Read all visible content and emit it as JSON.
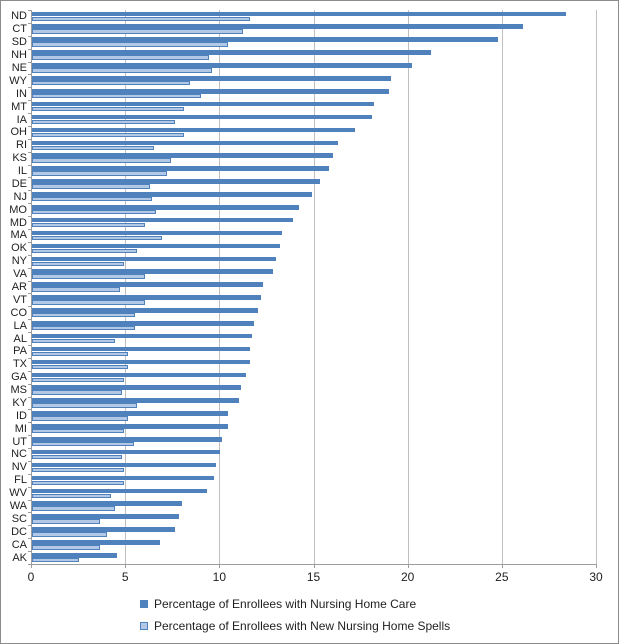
{
  "chart_data": {
    "type": "bar",
    "orientation": "horizontal",
    "title": "",
    "categories": [
      "ND",
      "CT",
      "SD",
      "NH",
      "NE",
      "WY",
      "IN",
      "MT",
      "IA",
      "OH",
      "RI",
      "KS",
      "IL",
      "DE",
      "NJ",
      "MO",
      "MD",
      "MA",
      "OK",
      "NY",
      "VA",
      "AR",
      "VT",
      "CO",
      "LA",
      "AL",
      "PA",
      "TX",
      "GA",
      "MS",
      "KY",
      "ID",
      "MI",
      "UT",
      "NC",
      "NV",
      "FL",
      "WV",
      "WA",
      "SC",
      "DC",
      "CA",
      "AK"
    ],
    "series": [
      {
        "name": "Percentage of Enrollees with Nursing Home Care",
        "color": "#4f81bd",
        "values": [
          28.4,
          26.1,
          24.8,
          21.2,
          20.2,
          19.1,
          19.0,
          18.2,
          18.1,
          17.2,
          16.3,
          16.0,
          15.8,
          15.3,
          14.9,
          14.2,
          13.9,
          13.3,
          13.2,
          13.0,
          12.8,
          12.3,
          12.2,
          12.0,
          11.8,
          11.7,
          11.6,
          11.6,
          11.4,
          11.1,
          11.0,
          10.4,
          10.4,
          10.1,
          10.0,
          9.8,
          9.7,
          9.3,
          8.0,
          7.8,
          7.6,
          6.8,
          4.5
        ]
      },
      {
        "name": "Percentage of Enrollees with New Nursing Home Spells",
        "color": "#b3c8e5",
        "border_color": "#4f81bd",
        "values": [
          11.6,
          11.2,
          10.4,
          9.4,
          9.6,
          8.4,
          9.0,
          8.1,
          7.6,
          8.1,
          6.5,
          7.4,
          7.2,
          6.3,
          6.4,
          6.6,
          6.0,
          6.9,
          5.6,
          4.9,
          6.0,
          4.7,
          6.0,
          5.5,
          5.5,
          4.4,
          5.1,
          5.1,
          4.9,
          4.8,
          5.6,
          5.1,
          4.9,
          5.4,
          4.8,
          4.9,
          4.9,
          4.2,
          4.4,
          3.6,
          4.0,
          3.6,
          2.5
        ]
      }
    ],
    "xlim": [
      0,
      30
    ],
    "x_ticks": [
      0,
      5,
      10,
      15,
      20,
      25,
      30
    ],
    "grid": true,
    "legend_position": "bottom",
    "xlabel": "",
    "ylabel": ""
  },
  "styles": {
    "axis_color": "#9d9d9d",
    "gridline_color": "#bfbfbf",
    "text_color": "#1f1f1f",
    "frame_border_color": "#8c8c8c",
    "background": "#ffffff"
  }
}
